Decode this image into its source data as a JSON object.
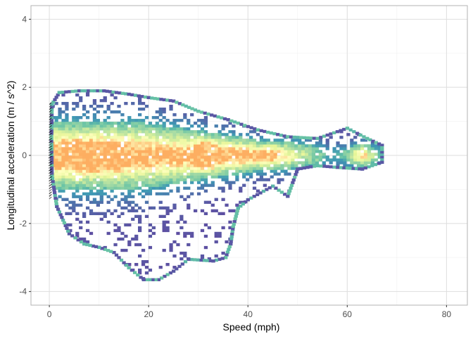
{
  "chart_data": {
    "type": "heatmap",
    "title": "",
    "xlabel": "Speed (mph)",
    "ylabel": "Longitudinal acceleration (m / s^2)",
    "xlim": [
      -3.7,
      84.2
    ],
    "ylim": [
      -4.4,
      4.4
    ],
    "x_ticks": [
      0,
      20,
      40,
      60,
      80
    ],
    "y_ticks": [
      -4,
      -2,
      0,
      2,
      4
    ],
    "grid": true,
    "legend": "none",
    "density_scale": {
      "low": "#5e4fa2",
      "mid_low": "#66c2a5",
      "mid": "#e6f598",
      "mid_high": "#ffffbf",
      "high": "#fdae61"
    },
    "density_peaks": [
      {
        "x": 0,
        "y": 0,
        "note": "dark stacked traces at zero speed"
      },
      {
        "x": 31.5,
        "y": 0.0
      },
      {
        "x": 63,
        "y": 0.0
      }
    ],
    "outer_contour": [
      [
        0.5,
        1.5
      ],
      [
        2,
        1.85
      ],
      [
        6,
        1.9
      ],
      [
        11,
        1.9
      ],
      [
        16,
        1.8
      ],
      [
        20,
        1.7
      ],
      [
        25,
        1.6
      ],
      [
        30,
        1.3
      ],
      [
        36,
        1.05
      ],
      [
        42,
        0.75
      ],
      [
        48,
        0.55
      ],
      [
        54,
        0.5
      ],
      [
        60,
        0.8
      ],
      [
        64,
        0.5
      ],
      [
        67,
        0.3
      ],
      [
        67,
        -0.2
      ],
      [
        63,
        -0.4
      ],
      [
        58,
        -0.35
      ],
      [
        54,
        -0.3
      ],
      [
        50,
        -0.4
      ],
      [
        48,
        -1.2
      ],
      [
        45,
        -0.9
      ],
      [
        40,
        -1.3
      ],
      [
        38,
        -1.55
      ],
      [
        37,
        -2.1
      ],
      [
        36.5,
        -2.6
      ],
      [
        35.5,
        -3.0
      ],
      [
        33,
        -3.1
      ],
      [
        28,
        -3.05
      ],
      [
        25,
        -3.4
      ],
      [
        22,
        -3.65
      ],
      [
        19,
        -3.65
      ],
      [
        16,
        -3.3
      ],
      [
        13,
        -2.85
      ],
      [
        10,
        -2.7
      ],
      [
        7,
        -2.6
      ],
      [
        4,
        -2.3
      ],
      [
        1.5,
        -1.5
      ],
      [
        0.5,
        -0.6
      ],
      [
        0.4,
        0.5
      ],
      [
        0.5,
        1.5
      ]
    ]
  }
}
